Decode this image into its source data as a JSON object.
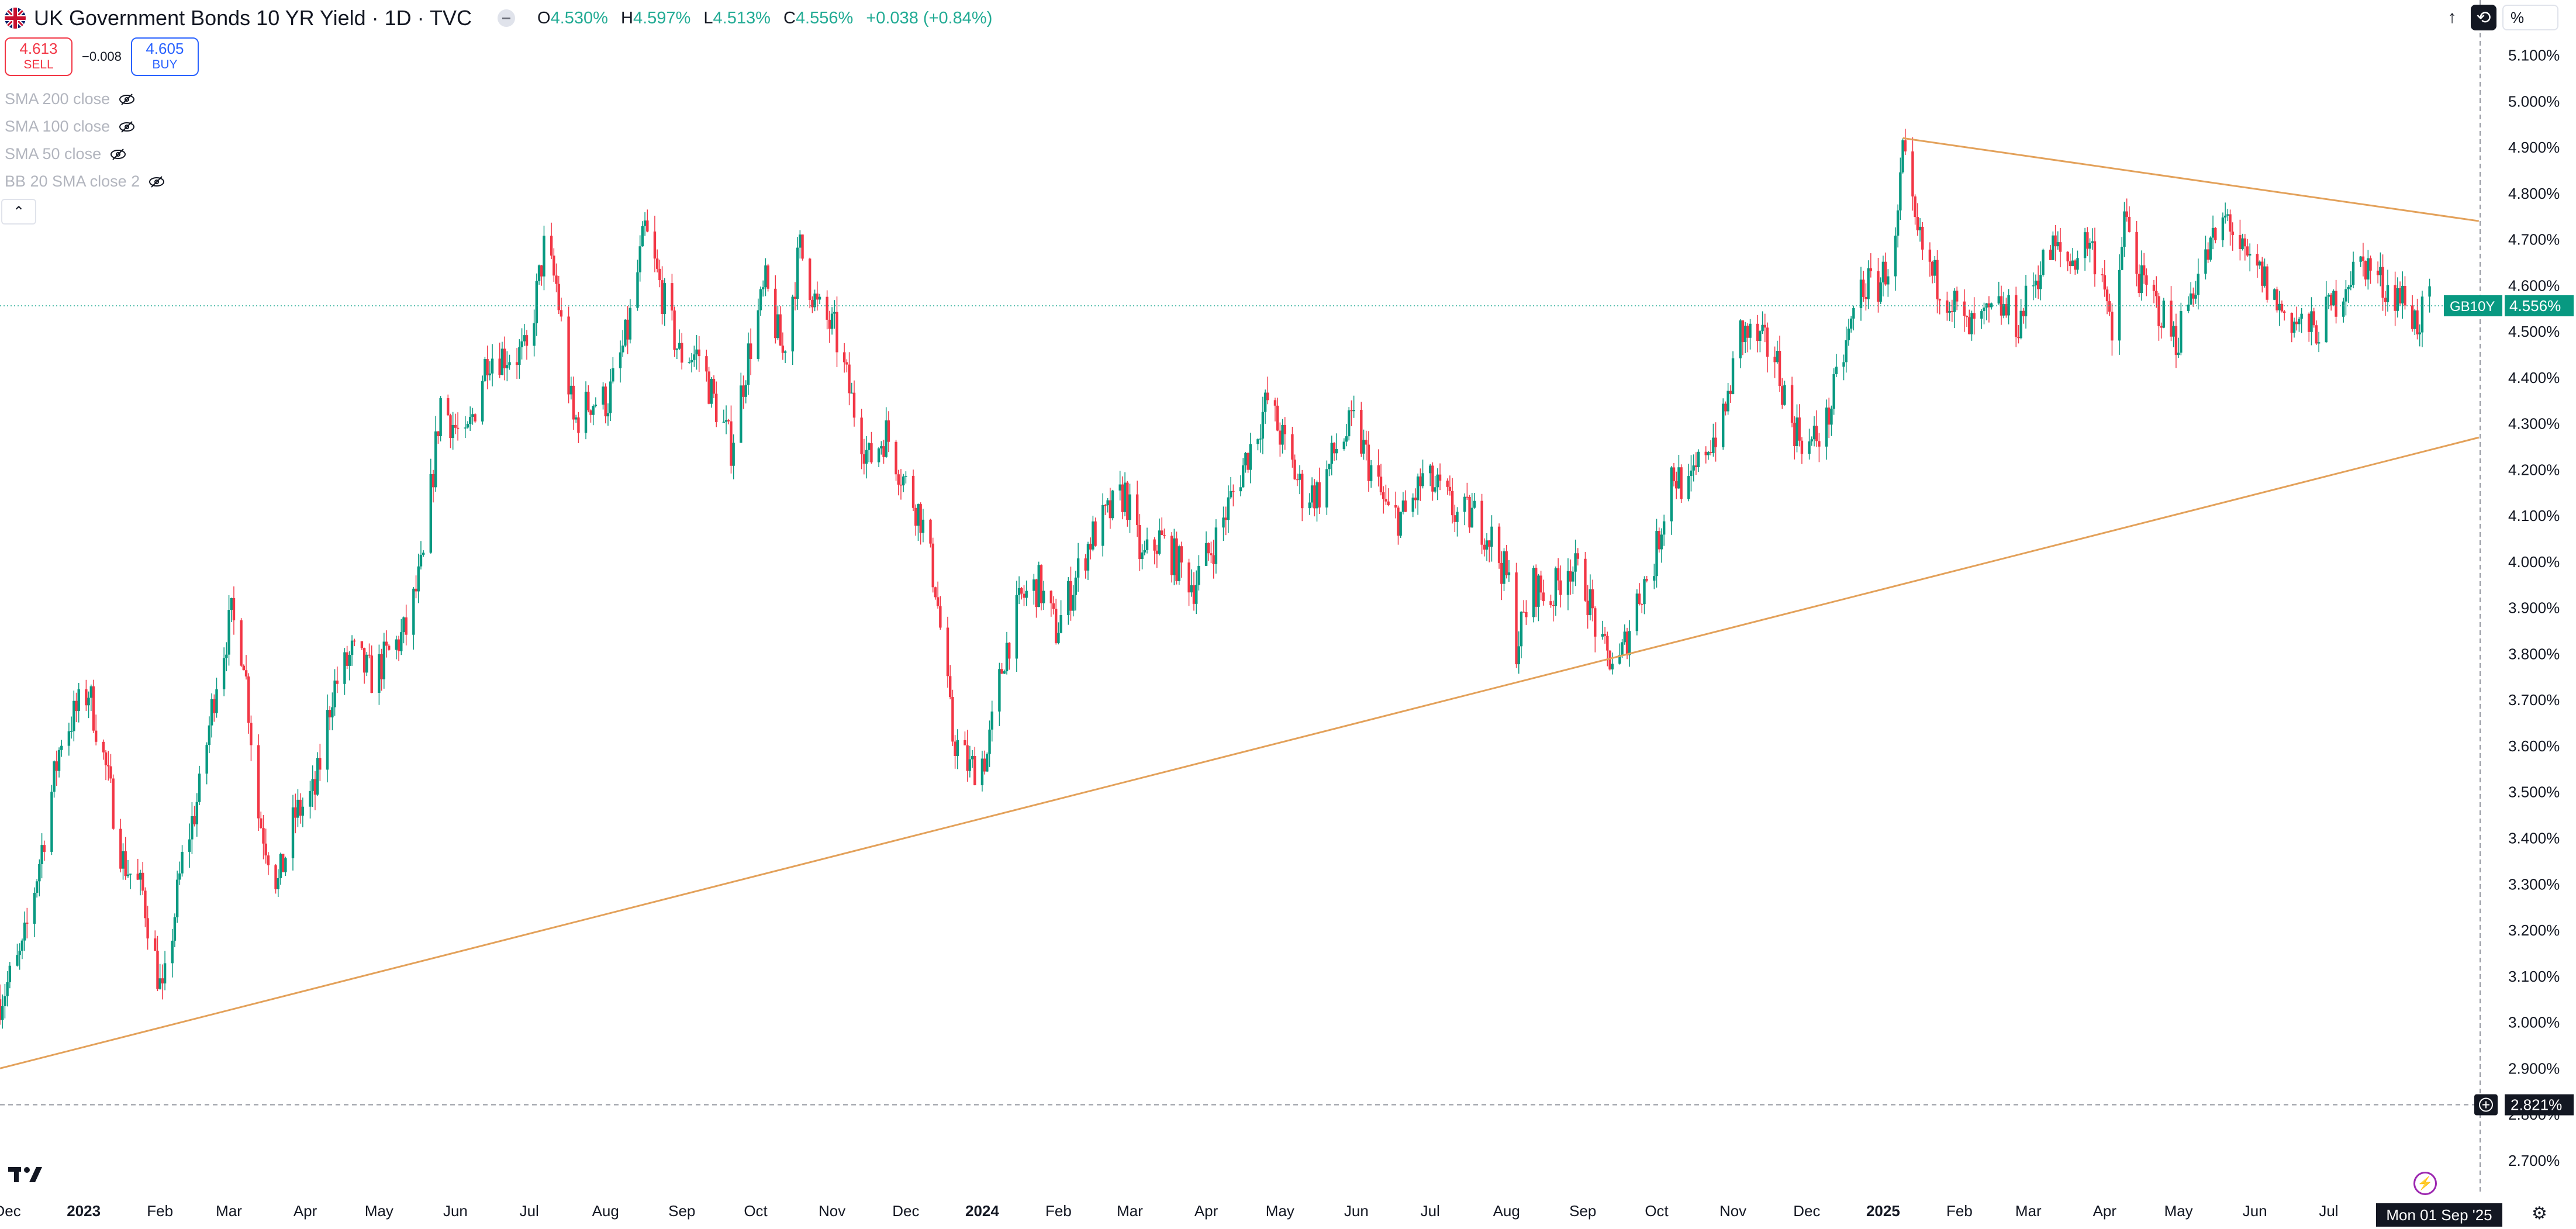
{
  "header": {
    "title": "UK Government Bonds 10 YR Yield · 1D · TVC",
    "ohlc": [
      {
        "key": "O",
        "value": "4.530%"
      },
      {
        "key": "H",
        "value": "4.597%"
      },
      {
        "key": "L",
        "value": "4.513%"
      },
      {
        "key": "C",
        "value": "4.556%"
      },
      {
        "key": "",
        "value": "+0.038 (+0.84%)"
      }
    ]
  },
  "quotes": {
    "sell_price": "4.613",
    "sell_label": "SELL",
    "spread": "−0.008",
    "buy_price": "4.605",
    "buy_label": "BUY"
  },
  "indicators": [
    "SMA 200 close",
    "SMA 100 close",
    "SMA 50 close",
    "BB 20 SMA close 2"
  ],
  "toolbar": {
    "percent_label": "%"
  },
  "colors": {
    "up": "#089981",
    "down": "#f23645",
    "trendline": "#e3a15a",
    "axis_text": "#131722",
    "price_line": "#22ab94"
  },
  "chart_data": {
    "type": "candlestick",
    "symbol": "GB10Y",
    "last_price_label": "4.556%",
    "current_price": 4.556,
    "crosshair_price_label": "2.821%",
    "crosshair_price": 2.821,
    "crosshair_date_label": "Mon 01 Sep '25",
    "ylim": [
      2.63,
      5.22
    ],
    "y_ticks": [
      {
        "value": 2.7,
        "label": "2.700%"
      },
      {
        "value": 2.8,
        "label": "2.800%"
      },
      {
        "value": 2.9,
        "label": "2.900%"
      },
      {
        "value": 3.0,
        "label": "3.000%"
      },
      {
        "value": 3.1,
        "label": "3.100%"
      },
      {
        "value": 3.2,
        "label": "3.200%"
      },
      {
        "value": 3.3,
        "label": "3.300%"
      },
      {
        "value": 3.4,
        "label": "3.400%"
      },
      {
        "value": 3.5,
        "label": "3.500%"
      },
      {
        "value": 3.6,
        "label": "3.600%"
      },
      {
        "value": 3.7,
        "label": "3.700%"
      },
      {
        "value": 3.8,
        "label": "3.800%"
      },
      {
        "value": 3.9,
        "label": "3.900%"
      },
      {
        "value": 4.0,
        "label": "4.000%"
      },
      {
        "value": 4.1,
        "label": "4.100%"
      },
      {
        "value": 4.2,
        "label": "4.200%"
      },
      {
        "value": 4.3,
        "label": "4.300%"
      },
      {
        "value": 4.4,
        "label": "4.400%"
      },
      {
        "value": 4.5,
        "label": "4.500%"
      },
      {
        "value": 4.6,
        "label": "4.600%"
      },
      {
        "value": 4.7,
        "label": "4.700%"
      },
      {
        "value": 4.8,
        "label": "4.800%"
      },
      {
        "value": 4.9,
        "label": "4.900%"
      },
      {
        "value": 5.0,
        "label": "5.000%"
      },
      {
        "value": 5.1,
        "label": "5.100%"
      }
    ],
    "x_range": [
      "2022-11-28",
      "2025-09-01"
    ],
    "x_ticks": [
      {
        "date": "2022-12-01",
        "label": "Dec",
        "bold": false
      },
      {
        "date": "2023-01-01",
        "label": "2023",
        "bold": true
      },
      {
        "date": "2023-02-01",
        "label": "Feb",
        "bold": false
      },
      {
        "date": "2023-03-01",
        "label": "Mar",
        "bold": false
      },
      {
        "date": "2023-04-01",
        "label": "Apr",
        "bold": false
      },
      {
        "date": "2023-05-01",
        "label": "May",
        "bold": false
      },
      {
        "date": "2023-06-01",
        "label": "Jun",
        "bold": false
      },
      {
        "date": "2023-07-01",
        "label": "Jul",
        "bold": false
      },
      {
        "date": "2023-08-01",
        "label": "Aug",
        "bold": false
      },
      {
        "date": "2023-09-01",
        "label": "Sep",
        "bold": false
      },
      {
        "date": "2023-10-01",
        "label": "Oct",
        "bold": false
      },
      {
        "date": "2023-11-01",
        "label": "Nov",
        "bold": false
      },
      {
        "date": "2023-12-01",
        "label": "Dec",
        "bold": false
      },
      {
        "date": "2024-01-01",
        "label": "2024",
        "bold": true
      },
      {
        "date": "2024-02-01",
        "label": "Feb",
        "bold": false
      },
      {
        "date": "2024-03-01",
        "label": "Mar",
        "bold": false
      },
      {
        "date": "2024-04-01",
        "label": "Apr",
        "bold": false
      },
      {
        "date": "2024-05-01",
        "label": "May",
        "bold": false
      },
      {
        "date": "2024-06-01",
        "label": "Jun",
        "bold": false
      },
      {
        "date": "2024-07-01",
        "label": "Jul",
        "bold": false
      },
      {
        "date": "2024-08-01",
        "label": "Aug",
        "bold": false
      },
      {
        "date": "2024-09-01",
        "label": "Sep",
        "bold": false
      },
      {
        "date": "2024-10-01",
        "label": "Oct",
        "bold": false
      },
      {
        "date": "2024-11-01",
        "label": "Nov",
        "bold": false
      },
      {
        "date": "2024-12-01",
        "label": "Dec",
        "bold": false
      },
      {
        "date": "2025-01-01",
        "label": "2025",
        "bold": true
      },
      {
        "date": "2025-02-01",
        "label": "Feb",
        "bold": false
      },
      {
        "date": "2025-03-01",
        "label": "Mar",
        "bold": false
      },
      {
        "date": "2025-04-01",
        "label": "Apr",
        "bold": false
      },
      {
        "date": "2025-05-01",
        "label": "May",
        "bold": false
      },
      {
        "date": "2025-06-01",
        "label": "Jun",
        "bold": false
      },
      {
        "date": "2025-07-01",
        "label": "Jul",
        "bold": false
      }
    ],
    "path": [
      [
        "2022-11-28",
        3.05
      ],
      [
        "2022-12-07",
        3.15
      ],
      [
        "2022-12-14",
        3.35
      ],
      [
        "2022-12-23",
        3.62
      ],
      [
        "2023-01-03",
        3.72
      ],
      [
        "2023-01-10",
        3.55
      ],
      [
        "2023-01-17",
        3.35
      ],
      [
        "2023-01-25",
        3.28
      ],
      [
        "2023-02-02",
        3.05
      ],
      [
        "2023-02-10",
        3.35
      ],
      [
        "2023-02-17",
        3.5
      ],
      [
        "2023-02-24",
        3.75
      ],
      [
        "2023-03-02",
        3.88
      ],
      [
        "2023-03-07",
        3.8
      ],
      [
        "2023-03-13",
        3.45
      ],
      [
        "2023-03-21",
        3.3
      ],
      [
        "2023-03-28",
        3.45
      ],
      [
        "2023-04-05",
        3.5
      ],
      [
        "2023-04-12",
        3.72
      ],
      [
        "2023-04-20",
        3.8
      ],
      [
        "2023-04-28",
        3.75
      ],
      [
        "2023-05-05",
        3.8
      ],
      [
        "2023-05-12",
        3.85
      ],
      [
        "2023-05-19",
        4.0
      ],
      [
        "2023-05-26",
        4.35
      ],
      [
        "2023-06-05",
        4.25
      ],
      [
        "2023-06-14",
        4.45
      ],
      [
        "2023-06-22",
        4.45
      ],
      [
        "2023-06-30",
        4.45
      ],
      [
        "2023-07-07",
        4.68
      ],
      [
        "2023-07-12",
        4.6
      ],
      [
        "2023-07-19",
        4.3
      ],
      [
        "2023-07-26",
        4.35
      ],
      [
        "2023-08-02",
        4.35
      ],
      [
        "2023-08-10",
        4.5
      ],
      [
        "2023-08-17",
        4.72
      ],
      [
        "2023-08-23",
        4.6
      ],
      [
        "2023-08-31",
        4.45
      ],
      [
        "2023-09-08",
        4.45
      ],
      [
        "2023-09-14",
        4.35
      ],
      [
        "2023-09-21",
        4.25
      ],
      [
        "2023-09-28",
        4.45
      ],
      [
        "2023-10-05",
        4.6
      ],
      [
        "2023-10-12",
        4.45
      ],
      [
        "2023-10-19",
        4.68
      ],
      [
        "2023-10-26",
        4.55
      ],
      [
        "2023-11-02",
        4.5
      ],
      [
        "2023-11-09",
        4.35
      ],
      [
        "2023-11-16",
        4.22
      ],
      [
        "2023-11-23",
        4.28
      ],
      [
        "2023-11-30",
        4.18
      ],
      [
        "2023-12-07",
        4.1
      ],
      [
        "2023-12-13",
        3.95
      ],
      [
        "2023-12-20",
        3.62
      ],
      [
        "2023-12-27",
        3.55
      ],
      [
        "2024-01-03",
        3.58
      ],
      [
        "2024-01-10",
        3.8
      ],
      [
        "2024-01-17",
        3.92
      ],
      [
        "2024-01-24",
        3.95
      ],
      [
        "2024-01-31",
        3.85
      ],
      [
        "2024-02-07",
        3.95
      ],
      [
        "2024-02-14",
        4.05
      ],
      [
        "2024-02-21",
        4.1
      ],
      [
        "2024-02-28",
        4.15
      ],
      [
        "2024-03-06",
        4.0
      ],
      [
        "2024-03-13",
        4.05
      ],
      [
        "2024-03-20",
        4.0
      ],
      [
        "2024-03-27",
        3.95
      ],
      [
        "2024-04-05",
        4.05
      ],
      [
        "2024-04-12",
        4.15
      ],
      [
        "2024-04-19",
        4.25
      ],
      [
        "2024-04-26",
        4.35
      ],
      [
        "2024-05-03",
        4.25
      ],
      [
        "2024-05-10",
        4.15
      ],
      [
        "2024-05-17",
        4.15
      ],
      [
        "2024-05-24",
        4.25
      ],
      [
        "2024-05-31",
        4.3
      ],
      [
        "2024-06-07",
        4.2
      ],
      [
        "2024-06-14",
        4.1
      ],
      [
        "2024-06-21",
        4.1
      ],
      [
        "2024-06-28",
        4.18
      ],
      [
        "2024-07-05",
        4.15
      ],
      [
        "2024-07-12",
        4.1
      ],
      [
        "2024-07-19",
        4.1
      ],
      [
        "2024-07-26",
        4.05
      ],
      [
        "2024-08-02",
        3.95
      ],
      [
        "2024-08-05",
        3.82
      ],
      [
        "2024-08-12",
        3.95
      ],
      [
        "2024-08-19",
        3.92
      ],
      [
        "2024-08-26",
        4.0
      ],
      [
        "2024-09-02",
        3.95
      ],
      [
        "2024-09-09",
        3.8
      ],
      [
        "2024-09-16",
        3.78
      ],
      [
        "2024-09-23",
        3.92
      ],
      [
        "2024-09-30",
        4.0
      ],
      [
        "2024-10-07",
        4.2
      ],
      [
        "2024-10-14",
        4.15
      ],
      [
        "2024-10-21",
        4.25
      ],
      [
        "2024-10-28",
        4.3
      ],
      [
        "2024-11-04",
        4.5
      ],
      [
        "2024-11-11",
        4.48
      ],
      [
        "2024-11-18",
        4.45
      ],
      [
        "2024-11-25",
        4.3
      ],
      [
        "2024-12-02",
        4.25
      ],
      [
        "2024-12-09",
        4.3
      ],
      [
        "2024-12-16",
        4.45
      ],
      [
        "2024-12-23",
        4.6
      ],
      [
        "2024-12-30",
        4.6
      ],
      [
        "2025-01-06",
        4.68
      ],
      [
        "2025-01-09",
        4.88
      ],
      [
        "2025-01-14",
        4.72
      ],
      [
        "2025-01-21",
        4.62
      ],
      [
        "2025-01-28",
        4.58
      ],
      [
        "2025-02-04",
        4.5
      ],
      [
        "2025-02-11",
        4.52
      ],
      [
        "2025-02-18",
        4.55
      ],
      [
        "2025-02-25",
        4.52
      ],
      [
        "2025-03-04",
        4.62
      ],
      [
        "2025-03-11",
        4.68
      ],
      [
        "2025-03-18",
        4.65
      ],
      [
        "2025-03-25",
        4.7
      ],
      [
        "2025-04-01",
        4.62
      ],
      [
        "2025-04-04",
        4.45
      ],
      [
        "2025-04-09",
        4.75
      ],
      [
        "2025-04-16",
        4.6
      ],
      [
        "2025-04-23",
        4.55
      ],
      [
        "2025-04-30",
        4.48
      ],
      [
        "2025-05-07",
        4.6
      ],
      [
        "2025-05-14",
        4.68
      ],
      [
        "2025-05-21",
        4.75
      ],
      [
        "2025-05-28",
        4.65
      ],
      [
        "2025-06-04",
        4.62
      ],
      [
        "2025-06-11",
        4.55
      ],
      [
        "2025-06-18",
        4.52
      ],
      [
        "2025-06-25",
        4.5
      ],
      [
        "2025-07-02",
        4.55
      ],
      [
        "2025-07-09",
        4.62
      ],
      [
        "2025-07-16",
        4.65
      ],
      [
        "2025-07-23",
        4.6
      ],
      [
        "2025-07-30",
        4.58
      ],
      [
        "2025-08-06",
        4.52
      ],
      [
        "2025-08-11",
        4.556
      ]
    ],
    "trendlines": [
      {
        "name": "",
        "from": [
          "2022-11-28",
          2.9
        ],
        "to": [
          "2025-08-31",
          4.27
        ]
      },
      {
        "name": "",
        "from": [
          "2025-01-09",
          4.92
        ],
        "to": [
          "2025-08-31",
          4.74
        ]
      }
    ]
  }
}
